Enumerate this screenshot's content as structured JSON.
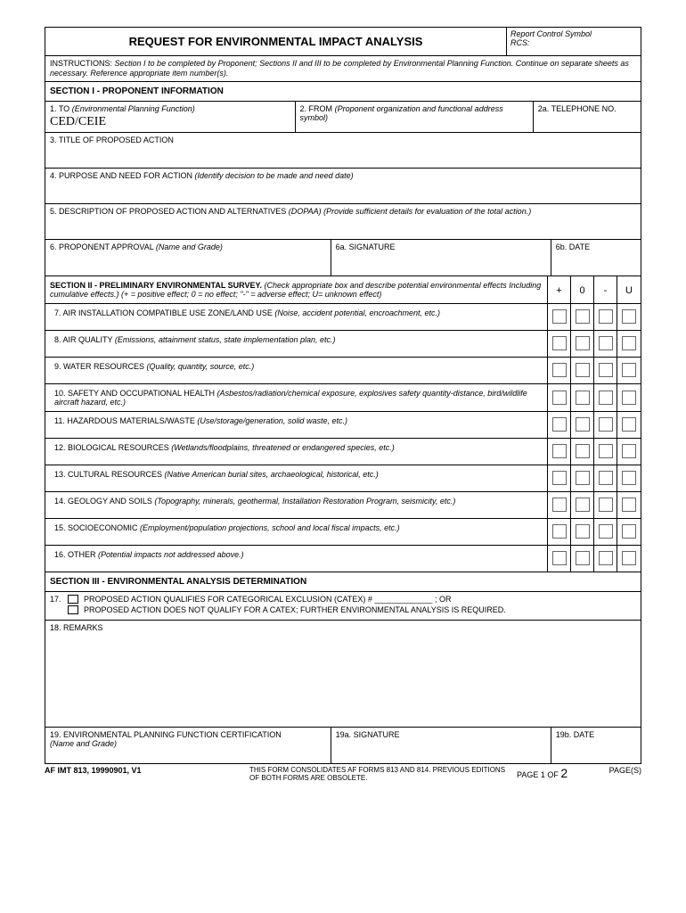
{
  "header": {
    "title": "REQUEST FOR ENVIRONMENTAL IMPACT ANALYSIS",
    "rcs_label": "Report Control Symbol",
    "rcs_prefix": "RCS:"
  },
  "instructions": {
    "label": "INSTRUCTIONS:",
    "text": "Section I to be completed by Proponent; Sections II and III to be completed by Environmental Planning Function. Continue on separate sheets as necessary. Reference appropriate item number(s)."
  },
  "section1": {
    "header": "SECTION I  -  PROPONENT INFORMATION",
    "to_label": "1. TO",
    "to_ital": "(Environmental Planning Function)",
    "to_value": "CED/CEIE",
    "from_label": "2. FROM",
    "from_ital": "(Proponent organization and functional address symbol)",
    "tel_label": "2a. TELEPHONE NO.",
    "title_label": "3. TITLE OF PROPOSED ACTION",
    "purpose_label": "4. PURPOSE AND NEED FOR ACTION",
    "purpose_ital": "(Identify decision to be made and need date)",
    "desc_label": "5. DESCRIPTION OF PROPOSED ACTION AND ALTERNATIVES",
    "desc_ital": "(DOPAA) (Provide sufficient details for evaluation of the total action.)",
    "approval_label": "6. PROPONENT APPROVAL",
    "approval_ital": "(Name and Grade)",
    "sig_label": "6a. SIGNATURE",
    "date_label": "6b. DATE"
  },
  "section2": {
    "header_bold": "SECTION II  -  PRELIMINARY ENVIRONMENTAL SURVEY.",
    "header_ital": "(Check appropriate box and describe potential environmental effects Including cumulative effects.) (+ = positive effect; 0 = no effect; \"-\" = adverse effect; U= unknown effect)",
    "cols": [
      "+",
      "0",
      "-",
      "U"
    ],
    "items": [
      {
        "num": "7.",
        "label": "AIR INSTALLATION COMPATIBLE USE ZONE/LAND USE",
        "ital": "(Noise, accident potential, encroachment, etc.)"
      },
      {
        "num": "8.",
        "label": "AIR QUALITY",
        "ital": "(Emissions, attainment status, state implementation plan, etc.)"
      },
      {
        "num": "9.",
        "label": "WATER RESOURCES",
        "ital": "(Quality, quantity, source, etc.)"
      },
      {
        "num": "10.",
        "label": "SAFETY AND OCCUPATIONAL HEALTH",
        "ital": "(Asbestos/radiation/chemical exposure, explosives safety quantity-distance, bird/wildlife aircraft hazard, etc.)"
      },
      {
        "num": "11.",
        "label": "HAZARDOUS MATERIALS/WASTE",
        "ital": "(Use/storage/generation, solid waste, etc.)"
      },
      {
        "num": "12.",
        "label": "BIOLOGICAL RESOURCES",
        "ital": "(Wetlands/floodplains, threatened or endangered species, etc.)"
      },
      {
        "num": "13.",
        "label": "CULTURAL RESOURCES",
        "ital": "(Native American burial sites, archaeological, historical, etc.)"
      },
      {
        "num": "14.",
        "label": "GEOLOGY AND SOILS",
        "ital": "(Topography, minerals, geothermal, Installation Restoration Program, seismicity, etc.)"
      },
      {
        "num": "15.",
        "label": "SOCIOECONOMIC",
        "ital": "(Employment/population projections, school and local fiscal impacts, etc.)"
      },
      {
        "num": "16.",
        "label": "OTHER",
        "ital": "(Potential impacts not addressed above.)"
      }
    ]
  },
  "section3": {
    "header": "SECTION III  - ENVIRONMENTAL ANALYSIS DETERMINATION",
    "s17_num": "17.",
    "s17_a": "PROPOSED ACTION QUALIFIES FOR CATEGORICAL EXCLUSION (CATEX) # _____________ ; OR",
    "s17_b": "PROPOSED ACTION DOES NOT QUALIFY FOR A CATEX; FURTHER ENVIRONMENTAL ANALYSIS IS REQUIRED.",
    "remarks_label": "18. REMARKS",
    "cert_label": "19. ENVIRONMENTAL PLANNING FUNCTION CERTIFICATION",
    "cert_ital": "(Name and Grade)",
    "sig_label": "19a. SIGNATURE",
    "date_label": "19b. DATE"
  },
  "footer": {
    "form_id": "AF IMT  813, 19990901, V1",
    "consol": "THIS FORM CONSOLIDATES  AF FORMS 813 AND 814. PREVIOUS EDITIONS OF BOTH FORMS ARE OBSOLETE.",
    "page_label": "PAGE 1 OF",
    "page_total": "2",
    "pages_label": "PAGE(S)"
  }
}
